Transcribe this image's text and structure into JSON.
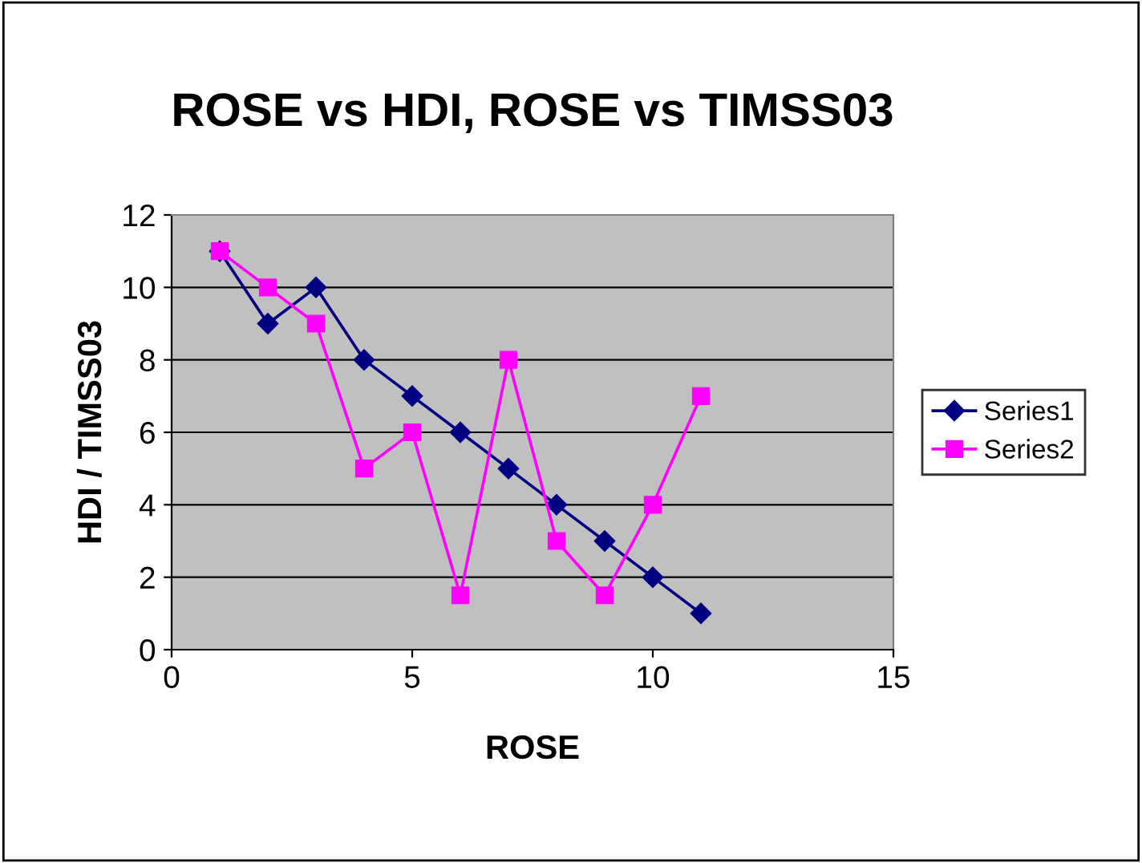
{
  "chart_data": {
    "type": "line",
    "title": "ROSE vs HDI, ROSE vs TIMSS03",
    "xlabel": "ROSE",
    "ylabel": "HDI / TIMSS03",
    "x": [
      1,
      2,
      3,
      4,
      5,
      6,
      7,
      8,
      9,
      10,
      11
    ],
    "series": [
      {
        "name": "Series1",
        "color": "#000080",
        "marker": "diamond",
        "values": [
          11,
          9,
          10,
          8,
          7,
          6,
          5,
          4,
          3,
          2,
          1
        ]
      },
      {
        "name": "Series2",
        "color": "#ff00ff",
        "marker": "square",
        "values": [
          11,
          10,
          9,
          5,
          6,
          1.5,
          8,
          3,
          1.5,
          4,
          7
        ]
      }
    ],
    "xlim": [
      0,
      15
    ],
    "xticks": [
      0,
      5,
      10,
      15
    ],
    "ylim": [
      0,
      12
    ],
    "yticks": [
      0,
      2,
      4,
      6,
      8,
      10,
      12
    ],
    "grid": "y",
    "legend": "right",
    "line_style": "solid"
  }
}
